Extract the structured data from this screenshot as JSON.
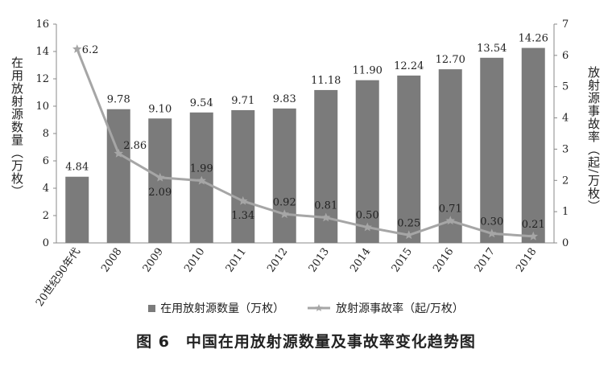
{
  "chart_data": {
    "type": "bar",
    "categories": [
      "20世纪90年代",
      "2008",
      "2009",
      "2010",
      "2011",
      "2012",
      "2013",
      "2014",
      "2015",
      "2016",
      "2017",
      "2018"
    ],
    "series": [
      {
        "name": "在用放射源数量（万枚）",
        "type": "bar",
        "axis": "left",
        "values": [
          4.84,
          9.78,
          9.1,
          9.54,
          9.71,
          9.83,
          11.18,
          11.9,
          12.24,
          12.7,
          13.54,
          14.26
        ],
        "labels": [
          "4.84",
          "9.78",
          "9.10",
          "9.54",
          "9.71",
          "9.83",
          "11.18",
          "11.90",
          "12.24",
          "12.70",
          "13.54",
          "14.26"
        ],
        "color": "#7b7b7b"
      },
      {
        "name": "放射源事故率（起/万枚）",
        "type": "line",
        "axis": "right",
        "values": [
          6.2,
          2.86,
          2.09,
          1.99,
          1.34,
          0.92,
          0.81,
          0.5,
          0.25,
          0.71,
          0.3,
          0.21
        ],
        "labels": [
          "6.2",
          "2.86",
          "2.09",
          "1.99",
          "1.34",
          "0.92",
          "0.81",
          "0.50",
          "0.25",
          "0.71",
          "0.30",
          "0.21"
        ],
        "color": "#a6a6a6"
      }
    ],
    "ylabel_left": "在用放射源数量（万枚）",
    "ylabel_right": "放射源事故率（起/万枚）",
    "ylim_left": [
      0,
      16
    ],
    "yticks_left": [
      0,
      2,
      4,
      6,
      8,
      10,
      12,
      14,
      16
    ],
    "ylim_right": [
      0,
      7
    ],
    "yticks_right": [
      0,
      1,
      2,
      3,
      4,
      5,
      6,
      7
    ],
    "grid": false,
    "legend_position": "bottom"
  },
  "legend": {
    "bar_label": "在用放射源数量（万枚）",
    "line_label": "放射源事故率（起/万枚）"
  },
  "caption": "图 6　中国在用放射源数量及事故率变化趋势图"
}
